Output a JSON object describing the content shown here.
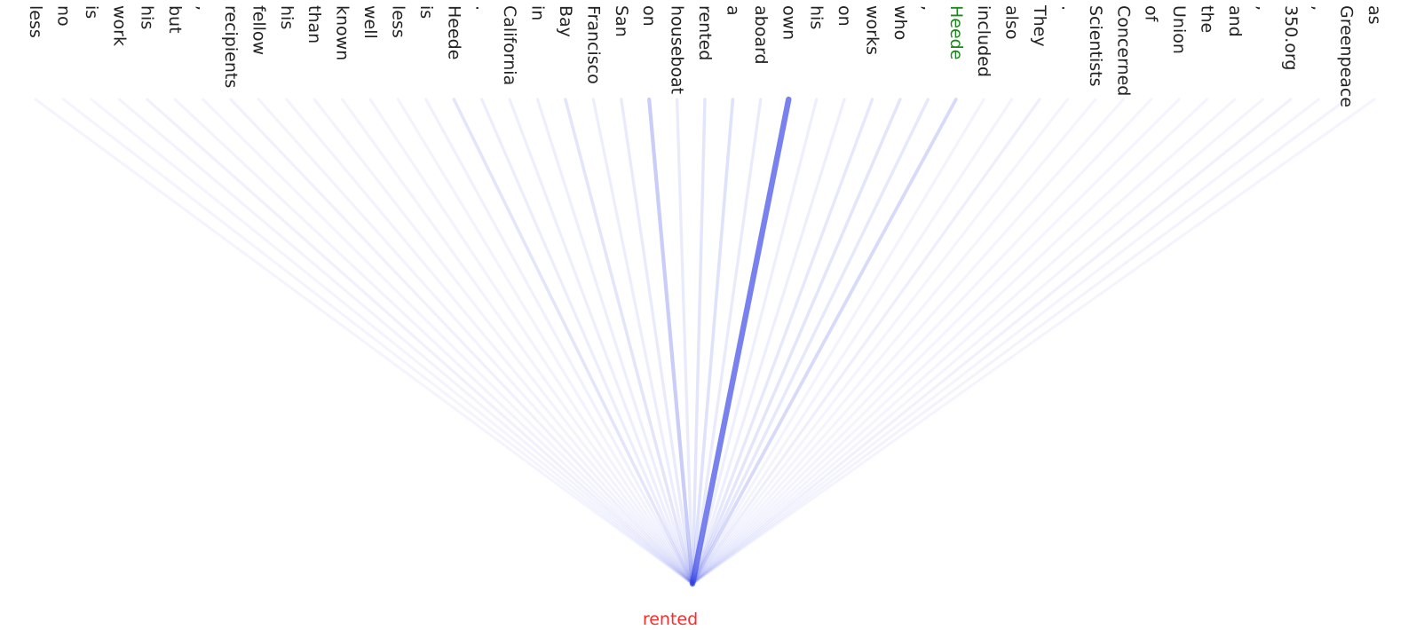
{
  "diagram": {
    "tokens": [
      {
        "text": "as",
        "color": "#222222",
        "weight": 0.01
      },
      {
        "text": "Greenpeace",
        "color": "#222222",
        "weight": 0.02
      },
      {
        "text": ",",
        "color": "#222222",
        "weight": 0.01
      },
      {
        "text": "350.org",
        "color": "#222222",
        "weight": 0.03
      },
      {
        "text": ",",
        "color": "#222222",
        "weight": 0.01
      },
      {
        "text": "and",
        "color": "#222222",
        "weight": 0.01
      },
      {
        "text": "the",
        "color": "#222222",
        "weight": 0.01
      },
      {
        "text": "Union",
        "color": "#222222",
        "weight": 0.01
      },
      {
        "text": "of",
        "color": "#222222",
        "weight": 0.01
      },
      {
        "text": "Concerned",
        "color": "#222222",
        "weight": 0.01
      },
      {
        "text": "Scientists",
        "color": "#222222",
        "weight": 0.01
      },
      {
        "text": ".",
        "color": "#222222",
        "weight": 0.01
      },
      {
        "text": "They",
        "color": "#222222",
        "weight": 0.05
      },
      {
        "text": "also",
        "color": "#222222",
        "weight": 0.02
      },
      {
        "text": "included",
        "color": "#222222",
        "weight": 0.02
      },
      {
        "text": "Heede",
        "color": "#1a8a1a",
        "weight": 0.2
      },
      {
        "text": ",",
        "color": "#222222",
        "weight": 0.1
      },
      {
        "text": "who",
        "color": "#222222",
        "weight": 0.12
      },
      {
        "text": "works",
        "color": "#222222",
        "weight": 0.1
      },
      {
        "text": "on",
        "color": "#222222",
        "weight": 0.05
      },
      {
        "text": "his",
        "color": "#222222",
        "weight": 0.05
      },
      {
        "text": "own",
        "color": "#222222",
        "weight": 0.85
      },
      {
        "text": "aboard",
        "color": "#222222",
        "weight": 0.08
      },
      {
        "text": "a",
        "color": "#222222",
        "weight": 0.15
      },
      {
        "text": "rented",
        "color": "#222222",
        "weight": 0.12
      },
      {
        "text": "houseboat",
        "color": "#222222",
        "weight": 0.08
      },
      {
        "text": "on",
        "color": "#222222",
        "weight": 0.3
      },
      {
        "text": "San",
        "color": "#222222",
        "weight": 0.08
      },
      {
        "text": "Francisco",
        "color": "#222222",
        "weight": 0.06
      },
      {
        "text": "Bay",
        "color": "#222222",
        "weight": 0.12
      },
      {
        "text": "in",
        "color": "#222222",
        "weight": 0.05
      },
      {
        "text": "California",
        "color": "#222222",
        "weight": 0.05
      },
      {
        "text": ".",
        "color": "#222222",
        "weight": 0.06
      },
      {
        "text": "Heede",
        "color": "#222222",
        "weight": 0.12
      },
      {
        "text": "is",
        "color": "#222222",
        "weight": 0.03
      },
      {
        "text": "less",
        "color": "#222222",
        "weight": 0.02
      },
      {
        "text": "well",
        "color": "#222222",
        "weight": 0.02
      },
      {
        "text": "known",
        "color": "#222222",
        "weight": 0.02
      },
      {
        "text": "than",
        "color": "#222222",
        "weight": 0.02
      },
      {
        "text": "his",
        "color": "#222222",
        "weight": 0.02
      },
      {
        "text": "fellow",
        "color": "#222222",
        "weight": 0.02
      },
      {
        "text": "recipients",
        "color": "#222222",
        "weight": 0.03
      },
      {
        "text": ",",
        "color": "#222222",
        "weight": 0.01
      },
      {
        "text": "but",
        "color": "#222222",
        "weight": 0.02
      },
      {
        "text": "his",
        "color": "#222222",
        "weight": 0.04
      },
      {
        "text": "work",
        "color": "#222222",
        "weight": 0.02
      },
      {
        "text": "is",
        "color": "#222222",
        "weight": 0.01
      },
      {
        "text": "no",
        "color": "#222222",
        "weight": 0.01
      },
      {
        "text": "less",
        "color": "#222222",
        "weight": 0.01
      }
    ],
    "target": {
      "text": "rented",
      "color": "#ff2a2a"
    },
    "edge_color": "#3b48e6"
  }
}
